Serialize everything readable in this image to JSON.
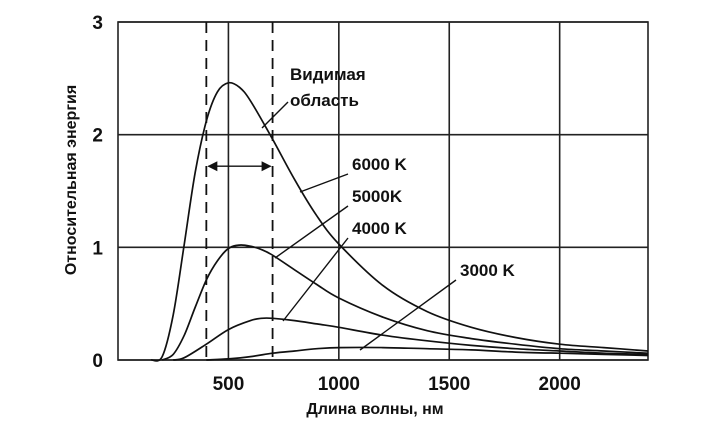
{
  "chart_data": {
    "type": "line",
    "title": "",
    "xlabel": "Длина волны, нм",
    "ylabel": "Относительная энергия",
    "xlim": [
      0,
      2400
    ],
    "ylim": [
      0,
      3
    ],
    "x_ticks": [
      500,
      1000,
      1500,
      2000
    ],
    "y_ticks": [
      0,
      1,
      2,
      3
    ],
    "grid": true,
    "visible_region": {
      "label_line1": "Видимая",
      "label_line2": "область",
      "from": 400,
      "to": 700
    },
    "series": [
      {
        "name": "6000 K",
        "temperature": 6000,
        "x": [
          150,
          200,
          250,
          300,
          350,
          400,
          450,
          500,
          550,
          600,
          700,
          800,
          900,
          1000,
          1200,
          1400,
          1600,
          1800,
          2000,
          2200,
          2400
        ],
        "values": [
          0.0,
          0.03,
          0.4,
          1.03,
          1.67,
          2.12,
          2.38,
          2.46,
          2.42,
          2.3,
          1.96,
          1.6,
          1.28,
          1.03,
          0.66,
          0.43,
          0.29,
          0.2,
          0.14,
          0.11,
          0.08
        ]
      },
      {
        "name": "5000K",
        "temperature": 5000,
        "x": [
          200,
          250,
          300,
          350,
          400,
          450,
          500,
          550,
          600,
          650,
          700,
          800,
          900,
          1000,
          1200,
          1400,
          1600,
          1800,
          2000,
          2200,
          2400
        ],
        "values": [
          0.0,
          0.05,
          0.22,
          0.47,
          0.71,
          0.88,
          0.99,
          1.02,
          1.01,
          0.98,
          0.93,
          0.8,
          0.67,
          0.55,
          0.38,
          0.26,
          0.19,
          0.14,
          0.1,
          0.08,
          0.06
        ]
      },
      {
        "name": "4000 K",
        "temperature": 4000,
        "x": [
          250,
          300,
          400,
          500,
          600,
          650,
          700,
          800,
          900,
          1000,
          1200,
          1400,
          1600,
          1800,
          2000,
          2200,
          2400
        ],
        "values": [
          0.0,
          0.02,
          0.14,
          0.27,
          0.35,
          0.37,
          0.37,
          0.35,
          0.32,
          0.29,
          0.22,
          0.17,
          0.13,
          0.1,
          0.08,
          0.06,
          0.05
        ]
      },
      {
        "name": "3000 K",
        "temperature": 3000,
        "x": [
          400,
          500,
          600,
          700,
          800,
          900,
          1000,
          1200,
          1400,
          1600,
          1800,
          2000,
          2200,
          2400
        ],
        "values": [
          0.0,
          0.01,
          0.03,
          0.06,
          0.08,
          0.1,
          0.11,
          0.11,
          0.1,
          0.09,
          0.07,
          0.06,
          0.05,
          0.04
        ]
      }
    ]
  }
}
